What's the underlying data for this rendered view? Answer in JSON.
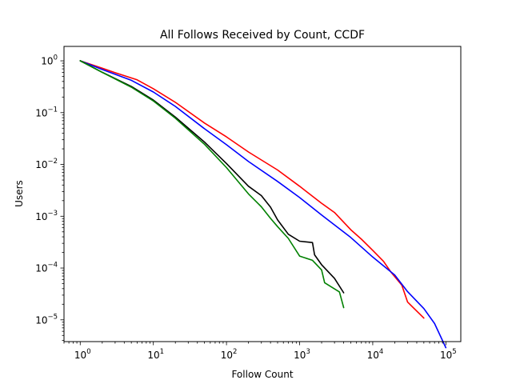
{
  "chart_data": {
    "type": "line",
    "title": "All Follows Received by Count, CCDF",
    "xlabel": "Follow Count",
    "ylabel": "Users",
    "xscale": "log",
    "yscale": "log",
    "xlim": [
      0.6,
      160000
    ],
    "ylim": [
      3.8e-06,
      1.9
    ],
    "grid": false,
    "legend": "none",
    "x_ticks": [
      {
        "base": "10",
        "exp": "0",
        "value": 1
      },
      {
        "base": "10",
        "exp": "1",
        "value": 10
      },
      {
        "base": "10",
        "exp": "2",
        "value": 100
      },
      {
        "base": "10",
        "exp": "3",
        "value": 1000
      },
      {
        "base": "10",
        "exp": "4",
        "value": 10000
      },
      {
        "base": "10",
        "exp": "5",
        "value": 100000
      }
    ],
    "y_ticks": [
      {
        "base": "10",
        "exp": "0",
        "value": 1
      },
      {
        "base": "10",
        "exp": "−1",
        "value": 0.1
      },
      {
        "base": "10",
        "exp": "−2",
        "value": 0.01
      },
      {
        "base": "10",
        "exp": "−3",
        "value": 0.001
      },
      {
        "base": "10",
        "exp": "−4",
        "value": 0.0001
      },
      {
        "base": "10",
        "exp": "−5",
        "value": 1e-05
      }
    ],
    "series": [
      {
        "color": "#ff0000",
        "points": [
          [
            1,
            1
          ],
          [
            2,
            0.72
          ],
          [
            3,
            0.59
          ],
          [
            6,
            0.43
          ],
          [
            10,
            0.29
          ],
          [
            20,
            0.158
          ],
          [
            50,
            0.063
          ],
          [
            100,
            0.034
          ],
          [
            200,
            0.0174
          ],
          [
            500,
            0.0078
          ],
          [
            1000,
            0.0038
          ],
          [
            2000,
            0.00178
          ],
          [
            3000,
            0.00118
          ],
          [
            5000,
            0.00055
          ],
          [
            7000,
            0.00036
          ],
          [
            10000,
            0.00022
          ],
          [
            14000,
            0.000135
          ],
          [
            18000,
            8.13e-05
          ],
          [
            25000,
            4.67e-05
          ],
          [
            30000,
            2.2e-05
          ],
          [
            50000,
            1.08e-05
          ]
        ]
      },
      {
        "color": "#0000ff",
        "points": [
          [
            1,
            1
          ],
          [
            2,
            0.68
          ],
          [
            5,
            0.42
          ],
          [
            10,
            0.25
          ],
          [
            20,
            0.132
          ],
          [
            50,
            0.049
          ],
          [
            100,
            0.024
          ],
          [
            200,
            0.0114
          ],
          [
            500,
            0.0047
          ],
          [
            1000,
            0.0023
          ],
          [
            2000,
            0.00106
          ],
          [
            5000,
            0.00039
          ],
          [
            10000,
            0.000163
          ],
          [
            20000,
            7.33e-05
          ],
          [
            30000,
            3.49e-05
          ],
          [
            50000,
            1.65e-05
          ],
          [
            70000,
            8.5e-06
          ],
          [
            100000,
            2.9e-06
          ]
        ]
      },
      {
        "color": "#000000",
        "points": [
          [
            1,
            1
          ],
          [
            2,
            0.6
          ],
          [
            5,
            0.32
          ],
          [
            10,
            0.175
          ],
          [
            20,
            0.082
          ],
          [
            50,
            0.027
          ],
          [
            100,
            0.0104
          ],
          [
            200,
            0.0038
          ],
          [
            300,
            0.0025
          ],
          [
            400,
            0.0015
          ],
          [
            500,
            0.00085
          ],
          [
            700,
            0.000449
          ],
          [
            1000,
            0.00033
          ],
          [
            1500,
            0.00031
          ],
          [
            1600,
            0.00018
          ],
          [
            2000,
            0.000116
          ],
          [
            3000,
            6.33e-05
          ],
          [
            4000,
            3.33e-05
          ]
        ]
      },
      {
        "color": "#008000",
        "points": [
          [
            1,
            1
          ],
          [
            2,
            0.6
          ],
          [
            5,
            0.31
          ],
          [
            10,
            0.168
          ],
          [
            20,
            0.078
          ],
          [
            50,
            0.0245
          ],
          [
            100,
            0.0087
          ],
          [
            200,
            0.0027
          ],
          [
            300,
            0.00152
          ],
          [
            400,
            0.00091
          ],
          [
            500,
            0.00063
          ],
          [
            700,
            0.000374
          ],
          [
            1000,
            0.00017
          ],
          [
            1500,
            0.000141
          ],
          [
            2000,
            9.2e-05
          ],
          [
            2200,
            5.2e-05
          ],
          [
            3500,
            3.46e-05
          ],
          [
            4000,
            1.72e-05
          ]
        ]
      }
    ]
  }
}
